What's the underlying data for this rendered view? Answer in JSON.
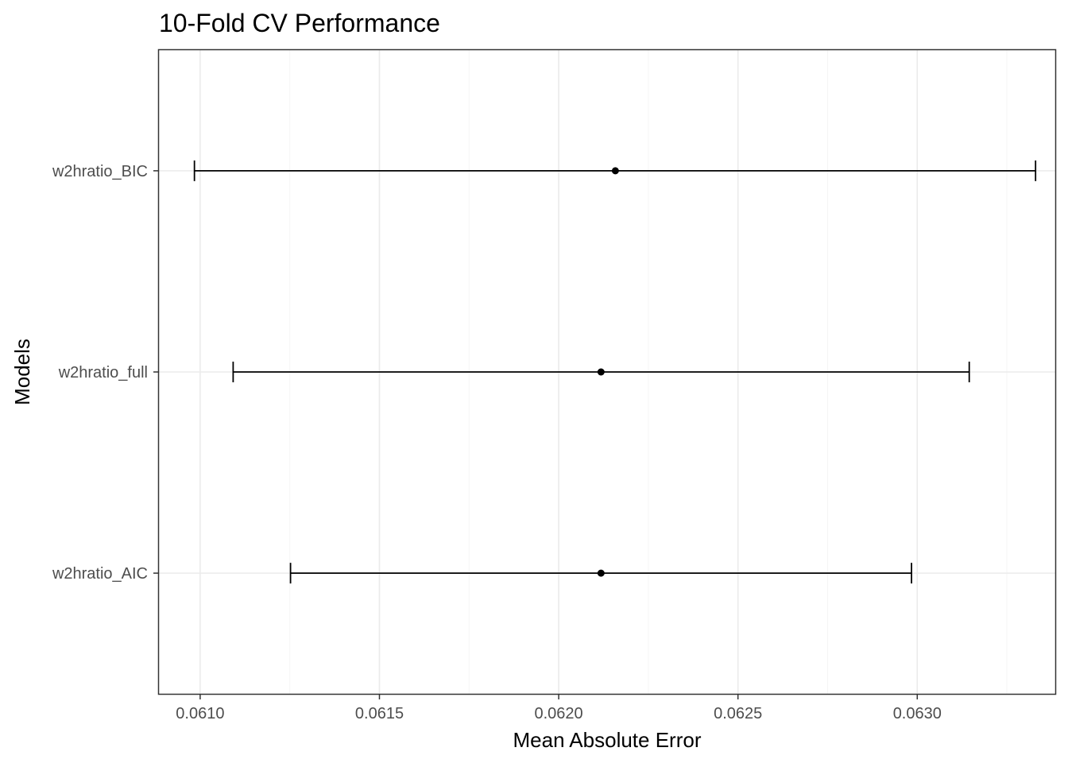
{
  "chart_data": {
    "type": "errorbar",
    "orientation": "horizontal",
    "title": "10-Fold CV Performance",
    "xlabel": "Mean Absolute Error",
    "ylabel": "Models",
    "xlim": [
      0.060885,
      0.063385
    ],
    "x_ticks": [
      0.061,
      0.0615,
      0.062,
      0.0625,
      0.063
    ],
    "x_tick_labels": [
      "0.0610",
      "0.0615",
      "0.0620",
      "0.0625",
      "0.0630"
    ],
    "categories": [
      "w2hratio_BIC",
      "w2hratio_full",
      "w2hratio_AIC"
    ],
    "points": [
      {
        "model": "w2hratio_BIC",
        "mean": 0.062158,
        "lower": 0.060984,
        "upper": 0.06333
      },
      {
        "model": "w2hratio_full",
        "mean": 0.062118,
        "lower": 0.061092,
        "upper": 0.063145
      },
      {
        "model": "w2hratio_AIC",
        "mean": 0.062118,
        "lower": 0.061252,
        "upper": 0.062984
      }
    ],
    "grid": true,
    "colors": {
      "mark": "#000000",
      "grid_major": "#ebebeb",
      "grid_minor": "#f5f5f5",
      "panel_border": "#333333"
    }
  }
}
